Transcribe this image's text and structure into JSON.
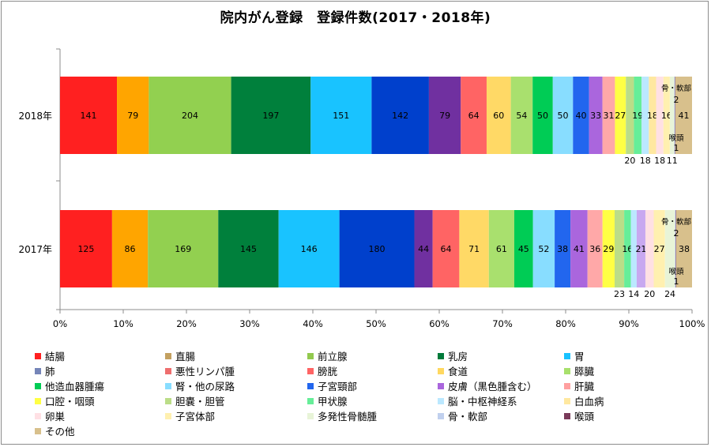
{
  "chart_data": {
    "type": "bar",
    "orientation": "horizontal",
    "stacked": "percent",
    "title": "院内がん登録　登録件数(2017・2018年)",
    "categories": [
      "2018年",
      "2017年"
    ],
    "x_ticks": [
      "0%",
      "10%",
      "20%",
      "30%",
      "40%",
      "50%",
      "60%",
      "70%",
      "80%",
      "90%",
      "100%"
    ],
    "xlim": [
      0,
      100
    ],
    "legend_position": "bottom",
    "series": [
      {
        "name": "結腸",
        "color": "#ff2020",
        "values": [
          141,
          125
        ],
        "labels": [
          "141",
          "125"
        ]
      },
      {
        "name": "直腸",
        "color": "#c3a060",
        "values": [
          0,
          0
        ],
        "labels": [
          "",
          ""
        ]
      },
      {
        "name": "前立腺",
        "color": "#92c94e",
        "values": [
          0,
          0
        ],
        "labels": [
          "",
          ""
        ]
      },
      {
        "name": "乳房",
        "color": "#007a3a",
        "values": [
          0,
          0
        ],
        "labels": [
          "",
          ""
        ]
      },
      {
        "name": "胃",
        "color": "#19c2ff",
        "values": [
          0,
          0
        ],
        "labels": [
          "",
          ""
        ]
      },
      {
        "name": "肺",
        "color": "#7585b8",
        "values": [
          0,
          0
        ],
        "labels": [
          "",
          ""
        ]
      },
      {
        "name": "悪性リンパ腫",
        "color": "#ee6e6e",
        "values": [
          0,
          0
        ],
        "labels": [
          "",
          ""
        ]
      },
      {
        "name": "膀胱",
        "color": "#ff6464",
        "values": [
          0,
          0
        ],
        "labels": [
          "",
          ""
        ]
      },
      {
        "name": "食道",
        "color": "#ffd860",
        "values": [
          0,
          0
        ],
        "labels": [
          "",
          ""
        ]
      },
      {
        "name": "膵臓",
        "color": "#a8e06c",
        "values": [
          0,
          0
        ],
        "labels": [
          "",
          ""
        ]
      },
      {
        "name": "他造血器腫瘍",
        "color": "#00cc55",
        "values": [
          0,
          0
        ],
        "labels": [
          "",
          ""
        ]
      },
      {
        "name": "腎・他の尿路",
        "color": "#88ddff",
        "values": [
          0,
          0
        ],
        "labels": [
          "",
          ""
        ]
      },
      {
        "name": "子宮頸部",
        "color": "#2266ee",
        "values": [
          0,
          0
        ],
        "labels": [
          "",
          ""
        ]
      },
      {
        "name": "皮膚(黒色腫含む)",
        "color": "#aa66dd",
        "values": [
          0,
          0
        ],
        "labels": [
          "",
          ""
        ]
      },
      {
        "name": "肝臓",
        "color": "#ffa0a0",
        "values": [
          0,
          0
        ],
        "labels": [
          "",
          ""
        ]
      },
      {
        "name": "口腔・咽頭",
        "color": "#ffff44",
        "values": [
          0,
          0
        ],
        "labels": [
          "",
          ""
        ]
      },
      {
        "name": "胆嚢・胆管",
        "color": "#bbdd88",
        "values": [
          0,
          0
        ],
        "labels": [
          "",
          ""
        ]
      },
      {
        "name": "甲状腺",
        "color": "#66ee99",
        "values": [
          0,
          0
        ],
        "labels": [
          "",
          ""
        ]
      },
      {
        "name": "脳・中枢神経系",
        "color": "#bbe8ff",
        "values": [
          0,
          0
        ],
        "labels": [
          "",
          ""
        ]
      },
      {
        "name": "白血病",
        "color": "#ffe8a0",
        "values": [
          0,
          0
        ],
        "labels": [
          "",
          ""
        ]
      },
      {
        "name": "卵巣",
        "color": "#ffe0e4",
        "values": [
          0,
          0
        ],
        "labels": [
          "",
          ""
        ]
      },
      {
        "name": "子宮体部",
        "color": "#fff0b0",
        "values": [
          0,
          0
        ],
        "labels": [
          "",
          ""
        ]
      },
      {
        "name": "多発性骨髄腫",
        "color": "#e8f4d8",
        "values": [
          0,
          0
        ],
        "labels": [
          "",
          ""
        ]
      },
      {
        "name": "骨・軟部",
        "color": "#c0d0ee",
        "values": [
          0,
          0
        ],
        "labels": [
          "",
          ""
        ]
      },
      {
        "name": "喉頭",
        "color": "#7a3a5a",
        "values": [
          0,
          0
        ],
        "labels": [
          "",
          ""
        ]
      },
      {
        "name": "その他",
        "color": "#d8c08c",
        "values": [
          0,
          0
        ],
        "labels": [
          "",
          ""
        ]
      }
    ],
    "bar_segments": {
      "2018年": [
        {
          "value": 141,
          "color": "#ff2020",
          "label": "141"
        },
        {
          "value": 79,
          "color": "#ffa500",
          "label": "79"
        },
        {
          "value": 204,
          "color": "#92d050",
          "label": "204"
        },
        {
          "value": 197,
          "color": "#00803c",
          "label": "197"
        },
        {
          "value": 151,
          "color": "#19c3ff",
          "label": "151"
        },
        {
          "value": 142,
          "color": "#0040cc",
          "label": "142"
        },
        {
          "value": 79,
          "color": "#7030a0",
          "label": "79"
        },
        {
          "value": 64,
          "color": "#ff6464",
          "label": "64"
        },
        {
          "value": 60,
          "color": "#ffd966",
          "label": "60"
        },
        {
          "value": 54,
          "color": "#a9e06e",
          "label": "54"
        },
        {
          "value": 50,
          "color": "#00cc55",
          "label": "50"
        },
        {
          "value": 50,
          "color": "#88ddff",
          "label": "50"
        },
        {
          "value": 40,
          "color": "#2266ee",
          "label": "40"
        },
        {
          "value": 33,
          "color": "#aa66dd",
          "label": "33"
        },
        {
          "value": 31,
          "color": "#ffa8a8",
          "label": "31"
        },
        {
          "value": 27,
          "color": "#ffff44",
          "label": "27"
        },
        {
          "value": 20,
          "color": "#bbdd88",
          "label": "20"
        },
        {
          "value": 19,
          "color": "#66ee99",
          "label": "19"
        },
        {
          "value": 18,
          "color": "#bbe8ff",
          "label": "18"
        },
        {
          "value": 18,
          "color": "#ffe8a0",
          "label": "18"
        },
        {
          "value": 18,
          "color": "#ffe0e4",
          "label": "18"
        },
        {
          "value": 16,
          "color": "#fff0b0",
          "label": "16"
        },
        {
          "value": 11,
          "color": "#e8f4d8",
          "label": "11"
        },
        {
          "value": 2,
          "color": "#c0d0ee",
          "label": "2"
        },
        {
          "value": 1,
          "color": "#7a3a5a",
          "label": "1"
        },
        {
          "value": 41,
          "color": "#d8c08c",
          "label": "41"
        }
      ],
      "2017年": [
        {
          "value": 125,
          "color": "#ff2020",
          "label": "125"
        },
        {
          "value": 86,
          "color": "#ffa500",
          "label": "86"
        },
        {
          "value": 169,
          "color": "#92d050",
          "label": "169"
        },
        {
          "value": 145,
          "color": "#00803c",
          "label": "145"
        },
        {
          "value": 146,
          "color": "#19c3ff",
          "label": "146"
        },
        {
          "value": 180,
          "color": "#0040cc",
          "label": "180"
        },
        {
          "value": 44,
          "color": "#7030a0",
          "label": "44"
        },
        {
          "value": 64,
          "color": "#ff6464",
          "label": "64"
        },
        {
          "value": 71,
          "color": "#ffd966",
          "label": "71"
        },
        {
          "value": 61,
          "color": "#a9e06e",
          "label": "61"
        },
        {
          "value": 45,
          "color": "#00cc55",
          "label": "45"
        },
        {
          "value": 52,
          "color": "#88ddff",
          "label": "52"
        },
        {
          "value": 38,
          "color": "#2266ee",
          "label": "38"
        },
        {
          "value": 41,
          "color": "#aa66dd",
          "label": "41"
        },
        {
          "value": 36,
          "color": "#ffa8a8",
          "label": "36"
        },
        {
          "value": 29,
          "color": "#ffff44",
          "label": "29"
        },
        {
          "value": 23,
          "color": "#bbdd88",
          "label": "23"
        },
        {
          "value": 16,
          "color": "#66ee99",
          "label": "16"
        },
        {
          "value": 14,
          "color": "#bbe8ff",
          "label": "14"
        },
        {
          "value": 21,
          "color": "#c8a8f0",
          "label": "21"
        },
        {
          "value": 20,
          "color": "#ffe0e4",
          "label": "20"
        },
        {
          "value": 27,
          "color": "#fff0b0",
          "label": "27"
        },
        {
          "value": 24,
          "color": "#e8f4d8",
          "label": "24"
        },
        {
          "value": 2,
          "color": "#c0d0ee",
          "label": "2"
        },
        {
          "value": 1,
          "color": "#7a3a5a",
          "label": "1"
        },
        {
          "value": 38,
          "color": "#d8c08c",
          "label": "38"
        }
      ]
    },
    "side_labels": {
      "bone_soft_tissue": "骨・軟部",
      "larynx": "喉頭"
    },
    "legend": [
      {
        "name": "結腸",
        "color": "#ff2020"
      },
      {
        "name": "直腸",
        "color": "#c3a060"
      },
      {
        "name": "前立腺",
        "color": "#92c94e"
      },
      {
        "name": "乳房",
        "color": "#007a3a"
      },
      {
        "name": "胃",
        "color": "#19c2ff"
      },
      {
        "name": "肺",
        "color": "#7585b8"
      },
      {
        "name": "悪性リンパ腫",
        "color": "#ee6e6e"
      },
      {
        "name": "膀胱",
        "color": "#ff6464"
      },
      {
        "name": "食道",
        "color": "#ffd860"
      },
      {
        "name": "膵臓",
        "color": "#a8e06c"
      },
      {
        "name": "他造血器腫瘍",
        "color": "#00cc55"
      },
      {
        "name": "腎・他の尿路",
        "color": "#88ddff"
      },
      {
        "name": "子宮頸部",
        "color": "#2266ee"
      },
      {
        "name": "皮膚（黒色腫含む）",
        "color": "#aa66dd"
      },
      {
        "name": "肝臓",
        "color": "#ffa0a0"
      },
      {
        "name": "口腔・咽頭",
        "color": "#ffff44"
      },
      {
        "name": "胆嚢・胆管",
        "color": "#bbdd88"
      },
      {
        "name": "甲状腺",
        "color": "#66ee99"
      },
      {
        "name": "脳・中枢神経系",
        "color": "#bbe8ff"
      },
      {
        "name": "白血病",
        "color": "#ffe8a0"
      },
      {
        "name": "卵巣",
        "color": "#ffe0e4"
      },
      {
        "name": "子宮体部",
        "color": "#fff0b0"
      },
      {
        "name": "多発性骨髄腫",
        "color": "#e8f4d8"
      },
      {
        "name": "骨・軟部",
        "color": "#c0d0ee"
      },
      {
        "name": "喉頭",
        "color": "#7a3a5a"
      },
      {
        "name": "その他",
        "color": "#d8c08c"
      }
    ]
  }
}
